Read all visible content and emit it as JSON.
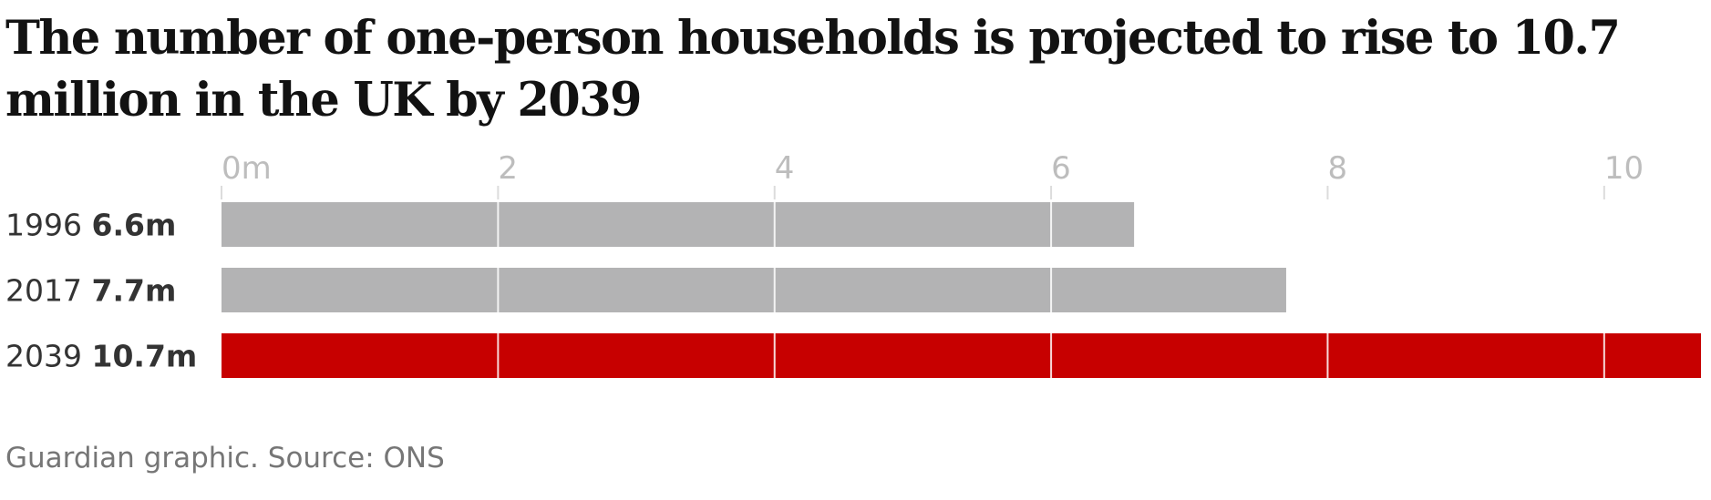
{
  "title": "The number of one-person households is projected to rise to 10.7 million in the UK by 2039",
  "source": "Guardian graphic. Source: ONS",
  "colors": {
    "default_bar": "#b3b3b4",
    "highlight_bar": "#c70000",
    "gridline": "#dcdcdc",
    "tick_text": "#bdbdbd",
    "label_text": "#333333",
    "title_text": "#121212",
    "source_text": "#767676"
  },
  "chart_data": {
    "type": "bar",
    "orientation": "horizontal",
    "categories": [
      "1996",
      "2017",
      "2039"
    ],
    "values": [
      6.6,
      7.7,
      10.7
    ],
    "value_labels": [
      "6.6m",
      "7.7m",
      "10.7m"
    ],
    "highlight": [
      "2039"
    ],
    "unit": "million",
    "xlim": [
      0,
      10.7
    ],
    "ticks": [
      0,
      2,
      4,
      6,
      8,
      10
    ],
    "tick_labels": [
      "0m",
      "2",
      "4",
      "6",
      "8",
      "10"
    ],
    "grid": true,
    "axis_position": "top"
  }
}
